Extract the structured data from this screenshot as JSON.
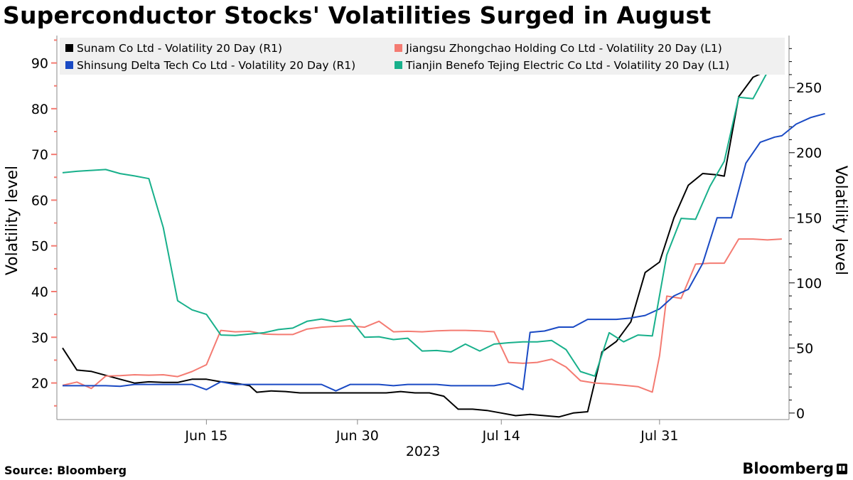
{
  "title": "Superconductor Stocks' Volatilities Surged in August",
  "source": "Source: Bloomberg",
  "brand": "Bloomberg",
  "chart_data": {
    "type": "line",
    "title": "Superconductor Stocks' Volatilities Surged in August",
    "xlabel": "2023",
    "ylabel_left": "Volatility level",
    "ylabel_right": "Volatility level",
    "ylim_left": [
      12,
      96
    ],
    "ylim_right": [
      -5,
      290
    ],
    "yticks_left": [
      20,
      30,
      40,
      50,
      60,
      70,
      80,
      90
    ],
    "yticks_right": [
      0,
      50,
      100,
      150,
      200,
      250
    ],
    "xlim": [
      0,
      101
    ],
    "xticks": [
      {
        "x": 20,
        "label": "Jun 15"
      },
      {
        "x": 41,
        "label": "Jun 30"
      },
      {
        "x": 61,
        "label": "Jul 14"
      },
      {
        "x": 83,
        "label": "Jul 31"
      }
    ],
    "grid": false,
    "legend_position": "top",
    "series": [
      {
        "name": "Sunam Co Ltd - Volatility 20 Day (R1)",
        "axis": "right",
        "color": "#000000",
        "points": [
          [
            0,
            50
          ],
          [
            2,
            33
          ],
          [
            4,
            32
          ],
          [
            6,
            29
          ],
          [
            8,
            26
          ],
          [
            10,
            23
          ],
          [
            12,
            24
          ],
          [
            14,
            23.5
          ],
          [
            16,
            23.5
          ],
          [
            18,
            26
          ],
          [
            20,
            26
          ],
          [
            22,
            24
          ],
          [
            24,
            23
          ],
          [
            26,
            21
          ],
          [
            27,
            16
          ],
          [
            29,
            17
          ],
          [
            31,
            16.5
          ],
          [
            33,
            15.5
          ],
          [
            35,
            15.5
          ],
          [
            37,
            15.5
          ],
          [
            39,
            15.5
          ],
          [
            41,
            15.5
          ],
          [
            43,
            15.5
          ],
          [
            45,
            15.5
          ],
          [
            47,
            16.5
          ],
          [
            49,
            15.5
          ],
          [
            51,
            15.5
          ],
          [
            53,
            13
          ],
          [
            55,
            3
          ],
          [
            57,
            3
          ],
          [
            59,
            2
          ],
          [
            61,
            0
          ],
          [
            63,
            -2
          ],
          [
            65,
            -1
          ],
          [
            67,
            -2
          ],
          [
            69,
            -3
          ],
          [
            71,
            0
          ],
          [
            73,
            1
          ],
          [
            75,
            47
          ],
          [
            77,
            55
          ],
          [
            79,
            70
          ],
          [
            81,
            108
          ],
          [
            83,
            116
          ],
          [
            85,
            150
          ],
          [
            87,
            175
          ],
          [
            89,
            184
          ],
          [
            91,
            183
          ],
          [
            92,
            182
          ],
          [
            94,
            243
          ],
          [
            96,
            258
          ],
          [
            98,
            263
          ],
          [
            100,
            267
          ]
        ]
      },
      {
        "name": "Jiangsu Zhongchao Holding Co Ltd - Volatility 20 Day (L1)",
        "axis": "left",
        "color": "#f47b72",
        "points": [
          [
            0,
            19.5
          ],
          [
            2,
            20.2
          ],
          [
            4,
            18.8
          ],
          [
            6,
            21.5
          ],
          [
            8,
            21.6
          ],
          [
            10,
            21.8
          ],
          [
            12,
            21.7
          ],
          [
            14,
            21.8
          ],
          [
            16,
            21.4
          ],
          [
            18,
            22.5
          ],
          [
            20,
            24
          ],
          [
            22,
            31.5
          ],
          [
            24,
            31.2
          ],
          [
            26,
            31.3
          ],
          [
            28,
            30.7
          ],
          [
            30,
            30.6
          ],
          [
            32,
            30.6
          ],
          [
            34,
            31.8
          ],
          [
            36,
            32.2
          ],
          [
            38,
            32.4
          ],
          [
            40,
            32.5
          ],
          [
            42,
            32.2
          ],
          [
            44,
            33.5
          ],
          [
            46,
            31.2
          ],
          [
            48,
            31.3
          ],
          [
            50,
            31.2
          ],
          [
            52,
            31.4
          ],
          [
            54,
            31.5
          ],
          [
            56,
            31.5
          ],
          [
            58,
            31.4
          ],
          [
            60,
            31.2
          ],
          [
            62,
            24.5
          ],
          [
            64,
            24.3
          ],
          [
            66,
            24.5
          ],
          [
            68,
            25.2
          ],
          [
            70,
            23.5
          ],
          [
            72,
            20.5
          ],
          [
            74,
            20
          ],
          [
            76,
            19.8
          ],
          [
            78,
            19.5
          ],
          [
            80,
            19.2
          ],
          [
            82,
            18
          ],
          [
            83,
            26
          ],
          [
            84,
            39
          ],
          [
            86,
            38.5
          ],
          [
            88,
            46
          ],
          [
            90,
            46.2
          ],
          [
            92,
            46.2
          ],
          [
            94,
            51.5
          ],
          [
            96,
            51.5
          ],
          [
            98,
            51.3
          ],
          [
            100,
            51.5
          ]
        ]
      },
      {
        "name": "Shinsung Delta Tech Co Ltd - Volatility 20 Day (R1)",
        "axis": "right",
        "color": "#1a4ac4",
        "points": [
          [
            0,
            21
          ],
          [
            2,
            21
          ],
          [
            4,
            21
          ],
          [
            6,
            21
          ],
          [
            8,
            20.5
          ],
          [
            10,
            22
          ],
          [
            12,
            22
          ],
          [
            14,
            22
          ],
          [
            16,
            22
          ],
          [
            18,
            22
          ],
          [
            20,
            18
          ],
          [
            22,
            24
          ],
          [
            24,
            22
          ],
          [
            26,
            22
          ],
          [
            28,
            22
          ],
          [
            30,
            22
          ],
          [
            32,
            22
          ],
          [
            34,
            22
          ],
          [
            36,
            22
          ],
          [
            38,
            17
          ],
          [
            40,
            22
          ],
          [
            42,
            22
          ],
          [
            44,
            22
          ],
          [
            46,
            21
          ],
          [
            48,
            22
          ],
          [
            50,
            22
          ],
          [
            52,
            22
          ],
          [
            54,
            21
          ],
          [
            56,
            21
          ],
          [
            58,
            21
          ],
          [
            60,
            21
          ],
          [
            62,
            23
          ],
          [
            64,
            18
          ],
          [
            65,
            62
          ],
          [
            67,
            63
          ],
          [
            69,
            66
          ],
          [
            71,
            66
          ],
          [
            73,
            72
          ],
          [
            75,
            72
          ],
          [
            77,
            72
          ],
          [
            79,
            73
          ],
          [
            81,
            75
          ],
          [
            83,
            80
          ],
          [
            85,
            90
          ],
          [
            87,
            95
          ],
          [
            89,
            115
          ],
          [
            91,
            150
          ],
          [
            93,
            150
          ],
          [
            95,
            192
          ],
          [
            97,
            208
          ],
          [
            99,
            212
          ],
          [
            100,
            213
          ],
          [
            102,
            222
          ],
          [
            104,
            227
          ],
          [
            106,
            230
          ]
        ]
      },
      {
        "name": "Tianjin Benefo Tejing Electric Co Ltd - Volatility 20 Day (L1)",
        "axis": "left",
        "color": "#18b08b",
        "points": [
          [
            0,
            66
          ],
          [
            2,
            66.3
          ],
          [
            4,
            66.5
          ],
          [
            6,
            66.7
          ],
          [
            8,
            65.8
          ],
          [
            10,
            65.3
          ],
          [
            12,
            64.7
          ],
          [
            14,
            54
          ],
          [
            16,
            38
          ],
          [
            18,
            36
          ],
          [
            20,
            35
          ],
          [
            22,
            30.5
          ],
          [
            24,
            30.4
          ],
          [
            26,
            30.7
          ],
          [
            28,
            31
          ],
          [
            30,
            31.7
          ],
          [
            32,
            32
          ],
          [
            34,
            33.5
          ],
          [
            36,
            34
          ],
          [
            38,
            33.4
          ],
          [
            40,
            34
          ],
          [
            42,
            30
          ],
          [
            44,
            30.1
          ],
          [
            46,
            29.5
          ],
          [
            48,
            29.8
          ],
          [
            50,
            27
          ],
          [
            52,
            27.1
          ],
          [
            54,
            26.8
          ],
          [
            56,
            28.5
          ],
          [
            58,
            27
          ],
          [
            60,
            28.5
          ],
          [
            62,
            28.8
          ],
          [
            64,
            29
          ],
          [
            66,
            29
          ],
          [
            68,
            29.3
          ],
          [
            70,
            27.3
          ],
          [
            72,
            22.5
          ],
          [
            74,
            21.5
          ],
          [
            76,
            31
          ],
          [
            78,
            29
          ],
          [
            80,
            30.5
          ],
          [
            82,
            30.3
          ],
          [
            84,
            48
          ],
          [
            86,
            56
          ],
          [
            88,
            55.8
          ],
          [
            90,
            63
          ],
          [
            92,
            68.5
          ],
          [
            94,
            82.5
          ],
          [
            96,
            82.2
          ],
          [
            98,
            88
          ],
          [
            100,
            88
          ]
        ]
      }
    ]
  }
}
